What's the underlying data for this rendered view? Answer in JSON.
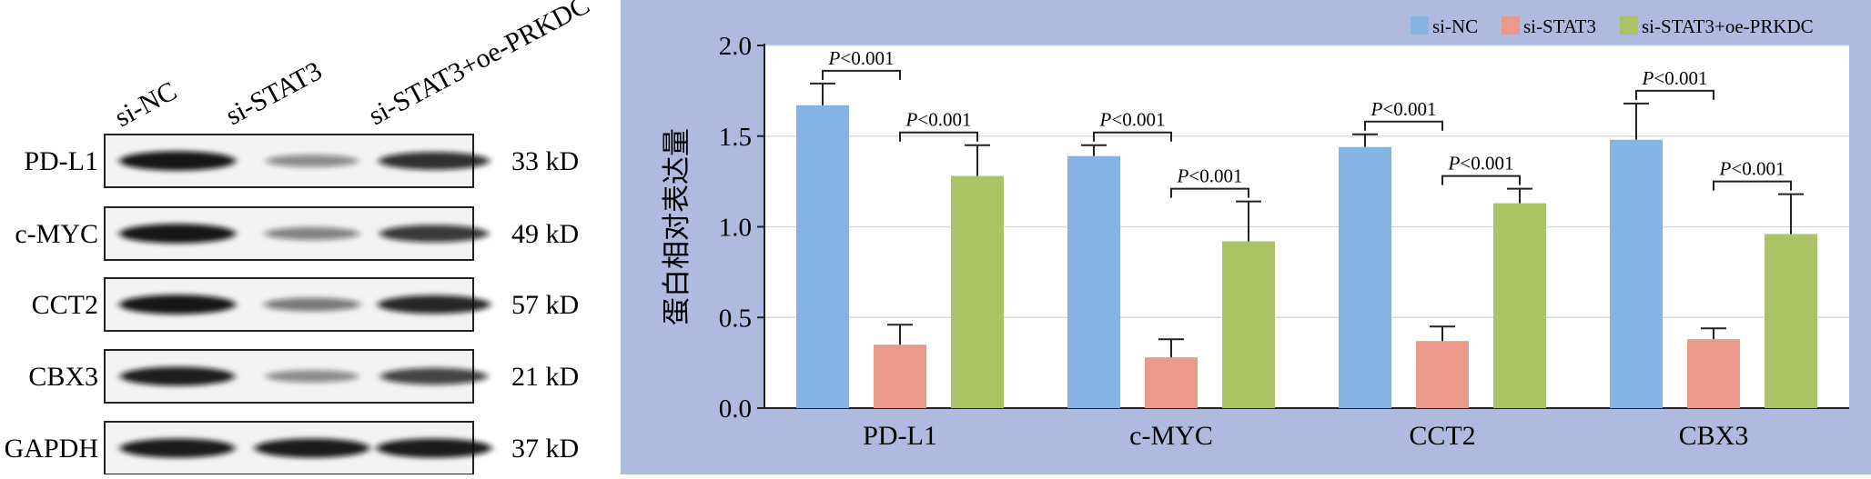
{
  "western_blot": {
    "lane_labels": [
      "si-NC",
      "si-STAT3",
      "si-STAT3+oe-PRKDC"
    ],
    "rows": [
      {
        "protein": "PD-L1",
        "size": "33 kD",
        "intensity": [
          0.95,
          0.3,
          0.8
        ]
      },
      {
        "protein": "c-MYC",
        "size": "49 kD",
        "intensity": [
          0.95,
          0.35,
          0.75
        ]
      },
      {
        "protein": "CCT2",
        "size": "57 kD",
        "intensity": [
          0.95,
          0.4,
          0.85
        ]
      },
      {
        "protein": "CBX3",
        "size": "21 kD",
        "intensity": [
          0.9,
          0.3,
          0.7
        ]
      },
      {
        "protein": "GAPDH",
        "size": "37 kD",
        "intensity": [
          0.92,
          0.92,
          0.92
        ]
      }
    ]
  },
  "chart_data": {
    "type": "bar",
    "title": "",
    "xlabel": "",
    "ylabel": "蛋白相对表达量",
    "ylim": [
      0,
      2.0
    ],
    "yticks": [
      "0.0",
      "0.5",
      "1.0",
      "1.5",
      "2.0"
    ],
    "grid": true,
    "legend_position": "top-right",
    "categories": [
      "PD-L1",
      "c-MYC",
      "CCT2",
      "CBX3"
    ],
    "series": [
      {
        "name": "si-NC",
        "color": "#86b4e2",
        "values": [
          1.67,
          1.39,
          1.44,
          1.48
        ],
        "errors": [
          0.12,
          0.06,
          0.07,
          0.2
        ]
      },
      {
        "name": "si-STAT3",
        "color": "#e99a8a",
        "values": [
          0.35,
          0.28,
          0.37,
          0.38
        ],
        "errors": [
          0.11,
          0.1,
          0.08,
          0.06
        ]
      },
      {
        "name": "si-STAT3+oe-PRKDC",
        "color": "#abc364",
        "values": [
          1.28,
          0.92,
          1.13,
          0.96
        ],
        "errors": [
          0.17,
          0.22,
          0.08,
          0.22
        ]
      }
    ],
    "significance": [
      {
        "category": 0,
        "pair": [
          0,
          1
        ],
        "label_p": "P",
        "label_rest": "<0.001"
      },
      {
        "category": 0,
        "pair": [
          1,
          2
        ],
        "label_p": "P",
        "label_rest": "<0.001"
      },
      {
        "category": 1,
        "pair": [
          0,
          1
        ],
        "label_p": "P",
        "label_rest": "<0.001"
      },
      {
        "category": 1,
        "pair": [
          1,
          2
        ],
        "label_p": "P",
        "label_rest": "<0.001"
      },
      {
        "category": 2,
        "pair": [
          0,
          1
        ],
        "label_p": "P",
        "label_rest": "<0.001"
      },
      {
        "category": 2,
        "pair": [
          1,
          2
        ],
        "label_p": "P",
        "label_rest": "<0.001"
      },
      {
        "category": 3,
        "pair": [
          0,
          1
        ],
        "label_p": "P",
        "label_rest": "<0.001"
      },
      {
        "category": 3,
        "pair": [
          1,
          2
        ],
        "label_p": "P",
        "label_rest": "<0.001"
      }
    ],
    "colors": {
      "panel_background": "#aebbdf",
      "plot_background": "#ffffff",
      "grid": "#d9d9d9"
    }
  }
}
